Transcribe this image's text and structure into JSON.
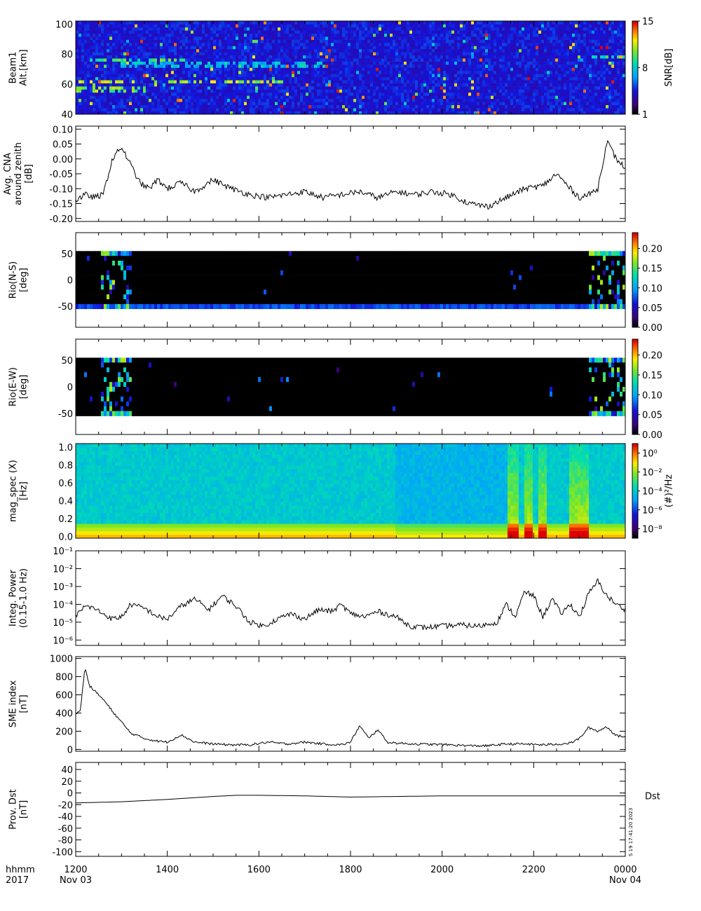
{
  "chart_data": [
    {
      "type": "heatmap",
      "ylabel": [
        "Beam1",
        "Alt.[km]"
      ],
      "yticks": [
        "40",
        "60",
        "80",
        "100"
      ],
      "ylim": [
        40,
        102
      ],
      "colorbar": {
        "label": "SNR[dB]",
        "ticks": [
          "1",
          "8",
          "15"
        ],
        "range": [
          1,
          15
        ]
      },
      "features": [
        {
          "t_start": 12.0,
          "t_end": 16.5,
          "alt_km": 62,
          "level": 11
        },
        {
          "t_start": 12.0,
          "t_end": 13.5,
          "alt_km": 57,
          "level": 10
        },
        {
          "t_start": 12.3,
          "t_end": 14.5,
          "alt_km": 76,
          "level": 9
        },
        {
          "t_start": 13.0,
          "t_end": 17.5,
          "alt_km": 73,
          "level": 7
        },
        {
          "t_start": 23.2,
          "t_end": 24.0,
          "alt_km": 78,
          "level": 8
        }
      ]
    },
    {
      "type": "line",
      "ylabel": [
        "Avg. CNA",
        "around zenith",
        "[dB]"
      ],
      "yticks": [
        "-0.20",
        "-0.15",
        "-0.10",
        "-0.05",
        "0.00",
        "0.05",
        "0.10"
      ],
      "ylim": [
        -0.21,
        0.11
      ],
      "x": [
        12.0,
        12.2,
        12.4,
        12.6,
        12.8,
        13.0,
        13.2,
        13.4,
        13.6,
        13.8,
        14.0,
        14.3,
        14.6,
        15.0,
        15.4,
        15.8,
        16.2,
        16.6,
        17.0,
        17.4,
        17.8,
        18.2,
        18.6,
        19.0,
        19.4,
        19.8,
        20.2,
        20.6,
        21.0,
        21.4,
        21.8,
        22.2,
        22.5,
        22.8,
        23.0,
        23.2,
        23.4,
        23.6,
        23.8,
        24.0
      ],
      "values": [
        -0.14,
        -0.12,
        -0.13,
        -0.12,
        0.0,
        0.04,
        -0.02,
        -0.08,
        -0.1,
        -0.07,
        -0.1,
        -0.08,
        -0.11,
        -0.07,
        -0.1,
        -0.12,
        -0.13,
        -0.12,
        -0.11,
        -0.13,
        -0.12,
        -0.11,
        -0.13,
        -0.11,
        -0.12,
        -0.11,
        -0.12,
        -0.15,
        -0.16,
        -0.13,
        -0.1,
        -0.09,
        -0.05,
        -0.1,
        -0.13,
        -0.12,
        -0.1,
        0.06,
        0.0,
        -0.03
      ]
    },
    {
      "type": "heatmap",
      "ylabel": [
        "Rio(N-S)",
        "[deg]"
      ],
      "yticks": [
        "-50",
        "0",
        "50"
      ],
      "ylim": [
        -90,
        90
      ],
      "colorbar": {
        "label": "",
        "ticks": [
          "0.00",
          "0.05",
          "0.10",
          "0.15",
          "0.20"
        ],
        "range": [
          0,
          0.24
        ]
      }
    },
    {
      "type": "heatmap",
      "ylabel": [
        "Rio(E-W)",
        "[deg]"
      ],
      "yticks": [
        "-50",
        "0",
        "50"
      ],
      "ylim": [
        -90,
        90
      ],
      "colorbar": {
        "label": "",
        "ticks": [
          "0.00",
          "0.05",
          "0.10",
          "0.15",
          "0.20"
        ],
        "range": [
          0,
          0.24
        ]
      }
    },
    {
      "type": "heatmap",
      "ylabel": [
        "mag_spec (X)",
        "[Hz]"
      ],
      "yticks": [
        "0.0",
        "0.2",
        "0.4",
        "0.6",
        "0.8",
        "1.0"
      ],
      "ylim": [
        -0.02,
        1.04
      ],
      "colorbar": {
        "label": "(#)²/Hz",
        "ticks": [
          "10⁻⁸",
          "10⁻⁶",
          "10⁻⁴",
          "10⁻²",
          "10⁰"
        ],
        "range": [
          -9,
          1
        ]
      }
    },
    {
      "type": "line",
      "yscale": "log",
      "ylabel": [
        "Integ. Power",
        "(0.15-1.0 Hz)"
      ],
      "yticks": [
        "10⁻⁶",
        "10⁻⁵",
        "10⁻⁴",
        "10⁻³",
        "10⁻²",
        "10⁻¹"
      ],
      "ylim": [
        5e-07,
        0.1
      ],
      "x": [
        12.0,
        12.2,
        12.4,
        12.6,
        12.8,
        13.0,
        13.2,
        13.5,
        13.8,
        14.0,
        14.3,
        14.6,
        14.9,
        15.2,
        15.5,
        15.8,
        16.1,
        16.4,
        16.7,
        17.0,
        17.3,
        17.6,
        17.8,
        18.0,
        18.3,
        18.6,
        19.0,
        19.3,
        19.6,
        20.0,
        20.4,
        20.8,
        21.2,
        21.4,
        21.6,
        21.8,
        22.0,
        22.2,
        22.4,
        22.6,
        22.8,
        23.0,
        23.2,
        23.4,
        23.6,
        23.8,
        24.0
      ],
      "values": [
        2e-05,
        8e-05,
        6e-05,
        3e-05,
        1.5e-05,
        2e-05,
        0.0001,
        6e-05,
        2e-05,
        1.5e-05,
        8e-05,
        0.0002,
        5e-05,
        0.0003,
        8e-05,
        1e-05,
        6e-06,
        1.5e-05,
        3e-05,
        1.5e-05,
        5e-05,
        4e-05,
        0.0001,
        3e-05,
        2e-05,
        4e-05,
        2e-05,
        6e-06,
        5e-06,
        6e-06,
        7e-06,
        6e-06,
        1e-05,
        0.0001,
        2e-05,
        0.0005,
        0.0003,
        2e-05,
        0.0002,
        3e-05,
        0.0001,
        2e-05,
        0.0004,
        0.002,
        0.0003,
        0.0001,
        5e-05
      ]
    },
    {
      "type": "line",
      "ylabel": [
        "SME index",
        "[nT]"
      ],
      "yticks": [
        "0",
        "200",
        "400",
        "600",
        "800",
        "1000"
      ],
      "ylim": [
        -20,
        1020
      ],
      "x": [
        12.0,
        12.1,
        12.2,
        12.3,
        12.4,
        12.5,
        12.6,
        12.8,
        13.0,
        13.2,
        13.5,
        13.8,
        14.0,
        14.3,
        14.6,
        15.0,
        15.4,
        15.8,
        16.2,
        16.6,
        17.0,
        17.4,
        17.8,
        18.0,
        18.2,
        18.4,
        18.6,
        18.8,
        19.0,
        19.4,
        19.8,
        20.2,
        20.6,
        21.0,
        21.4,
        21.8,
        22.2,
        22.6,
        22.8,
        23.0,
        23.2,
        23.4,
        23.6,
        23.8,
        24.0
      ],
      "values": [
        400,
        420,
        900,
        700,
        650,
        600,
        550,
        420,
        300,
        180,
        120,
        90,
        80,
        160,
        80,
        60,
        50,
        50,
        80,
        60,
        80,
        60,
        50,
        80,
        260,
        120,
        220,
        80,
        70,
        60,
        55,
        50,
        40,
        40,
        60,
        60,
        50,
        60,
        70,
        120,
        240,
        200,
        250,
        150,
        140
      ]
    },
    {
      "type": "line",
      "ylabel": [
        "Prov. Dst",
        "[nT]"
      ],
      "yticks": [
        "-100",
        "-80",
        "-60",
        "-40",
        "-20",
        "0",
        "20",
        "40"
      ],
      "ylim": [
        -108,
        52
      ],
      "x": [
        12.0,
        13.0,
        14.0,
        15.0,
        15.5,
        16.0,
        17.0,
        18.0,
        19.0,
        20.0,
        21.0,
        22.0,
        23.0,
        24.0
      ],
      "values": [
        -17,
        -15,
        -11,
        -6,
        -4,
        -4,
        -5,
        -7,
        -6,
        -5,
        -5,
        -5,
        -5,
        -5
      ],
      "legend": "Dst"
    }
  ],
  "time_axis": {
    "label_lines": [
      "hhmm",
      "2017"
    ],
    "ticks": [
      {
        "time": "1200",
        "date": "Nov 03"
      },
      {
        "time": "1400",
        "date": ""
      },
      {
        "time": "1600",
        "date": ""
      },
      {
        "time": "1800",
        "date": ""
      },
      {
        "time": "2000",
        "date": ""
      },
      {
        "time": "2200",
        "date": ""
      },
      {
        "time": "0000",
        "date": "Nov 04"
      }
    ],
    "range_hours": [
      12,
      24
    ]
  },
  "side_stamp": "S 19 17:41:20 2023"
}
